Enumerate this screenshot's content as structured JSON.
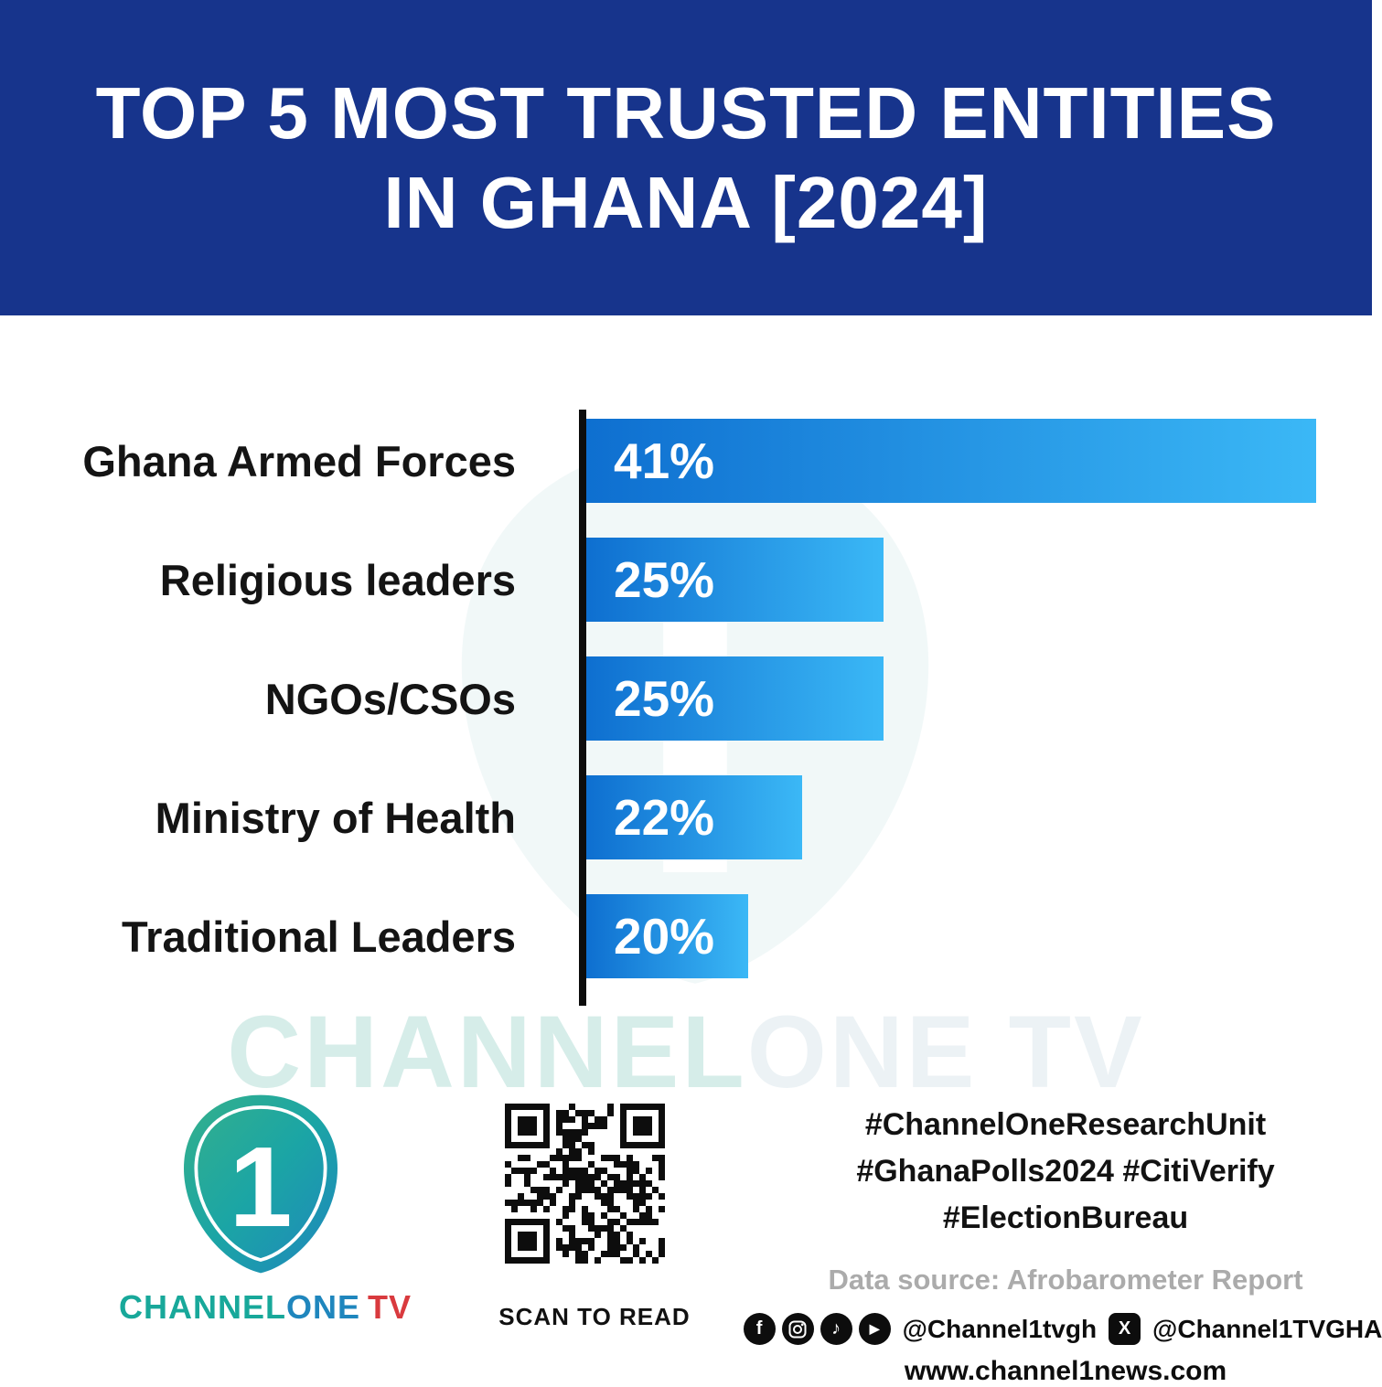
{
  "header": {
    "title_line1": "TOP 5 MOST TRUSTED ENTITIES",
    "title_line2": "IN GHANA [2024]"
  },
  "chart_data": {
    "type": "bar",
    "orientation": "horizontal",
    "title": "Top 5 Most Trusted Entities in Ghana [2024]",
    "categories": [
      "Ghana Armed Forces",
      "Religious leaders",
      "NGOs/CSOs",
      "Ministry of Health",
      "Traditional Leaders"
    ],
    "values": [
      41,
      25,
      25,
      22,
      20
    ],
    "value_labels": [
      "41%",
      "25%",
      "25%",
      "22%",
      "20%"
    ],
    "unit": "%",
    "xlim_visual": [
      14,
      41
    ],
    "grid": false,
    "legend": false,
    "bar_color_start": "#0E6FD0",
    "bar_color_end": "#3BB8F6"
  },
  "watermark": {
    "text_a": "CHANNEL",
    "text_b": "ONE TV"
  },
  "footer": {
    "logo": {
      "numeral": "1",
      "brand_channel": "CHANNEL",
      "brand_one": "ONE",
      "brand_tv": "TV"
    },
    "qr_caption": "SCAN TO READ",
    "hashtags": [
      "#ChannelOneResearchUnit",
      "#GhanaPolls2024 #CitiVerify",
      "#ElectionBureau"
    ],
    "data_source": "Data source: Afrobarometer Report",
    "social": {
      "facebook_glyph": "f",
      "tiktok_glyph": "♪",
      "youtube_glyph": "▶",
      "x_glyph": "X",
      "handle_1": "@Channel1tvgh",
      "handle_2": "@Channel1TVGHA"
    },
    "website": "www.channel1news.com"
  },
  "colors": {
    "header_bg": "#17348C",
    "axis": "#0D0D0D",
    "brand_teal": "#18A89A",
    "brand_blue": "#1F86BD",
    "brand_red": "#D93A3E"
  }
}
